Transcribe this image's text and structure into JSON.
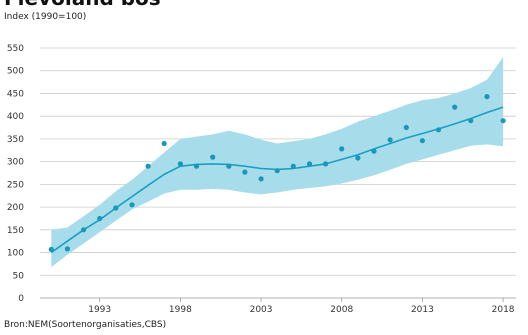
{
  "chart_data": {
    "type": "line",
    "title": "Flevoland bos",
    "subtitle": "Index (1990=100)",
    "source": "Bron:NEM(Soortenorganisaties,CBS)",
    "xlabel": "",
    "ylabel": "",
    "xlim": [
      1989.3,
      2018.8
    ],
    "ylim": [
      0,
      550
    ],
    "x_ticks": [
      1993,
      1998,
      2003,
      2008,
      2013,
      2018
    ],
    "y_ticks": [
      0,
      50,
      100,
      150,
      200,
      250,
      300,
      350,
      400,
      450,
      500,
      550
    ],
    "grid": "horizontal",
    "points": {
      "x": [
        1990,
        1991,
        1992,
        1993,
        1994,
        1995,
        1996,
        1997,
        1998,
        1999,
        2000,
        2001,
        2002,
        2003,
        2004,
        2005,
        2006,
        2007,
        2008,
        2009,
        2010,
        2011,
        2012,
        2013,
        2014,
        2015,
        2016,
        2017,
        2018
      ],
      "y": [
        107,
        108,
        150,
        175,
        198,
        205,
        290,
        340,
        295,
        290,
        310,
        290,
        277,
        262,
        280,
        290,
        295,
        295,
        328,
        308,
        323,
        348,
        375,
        346,
        370,
        420,
        390,
        443,
        390
      ]
    },
    "trend": {
      "x": [
        1990,
        1991,
        1992,
        1993,
        1994,
        1995,
        1996,
        1997,
        1998,
        1999,
        2000,
        2001,
        2002,
        2003,
        2004,
        2005,
        2006,
        2007,
        2008,
        2009,
        2010,
        2011,
        2012,
        2013,
        2014,
        2015,
        2016,
        2017,
        2018
      ],
      "y": [
        100,
        125,
        150,
        172,
        198,
        223,
        248,
        272,
        290,
        294,
        295,
        294,
        290,
        285,
        283,
        285,
        290,
        295,
        305,
        315,
        328,
        340,
        352,
        362,
        372,
        383,
        395,
        408,
        420
      ]
    },
    "band": {
      "x": [
        1990,
        1991,
        1992,
        1993,
        1994,
        1995,
        1996,
        1997,
        1998,
        1999,
        2000,
        2001,
        2002,
        2003,
        2004,
        2005,
        2006,
        2007,
        2008,
        2009,
        2010,
        2011,
        2012,
        2013,
        2014,
        2015,
        2016,
        2017,
        2018
      ],
      "lower": [
        68,
        95,
        120,
        145,
        170,
        195,
        212,
        230,
        238,
        238,
        240,
        238,
        232,
        228,
        232,
        238,
        242,
        246,
        252,
        260,
        270,
        282,
        295,
        305,
        315,
        325,
        335,
        338,
        334
      ],
      "upper": [
        150,
        155,
        180,
        205,
        235,
        260,
        290,
        320,
        350,
        355,
        360,
        368,
        360,
        348,
        340,
        345,
        350,
        360,
        372,
        388,
        400,
        412,
        425,
        435,
        440,
        450,
        462,
        480,
        530
      ]
    },
    "colors": {
      "band": "#a7dcea",
      "line": "#18a0c4",
      "points": "#1a97b9",
      "grid": "#cccccc"
    }
  }
}
